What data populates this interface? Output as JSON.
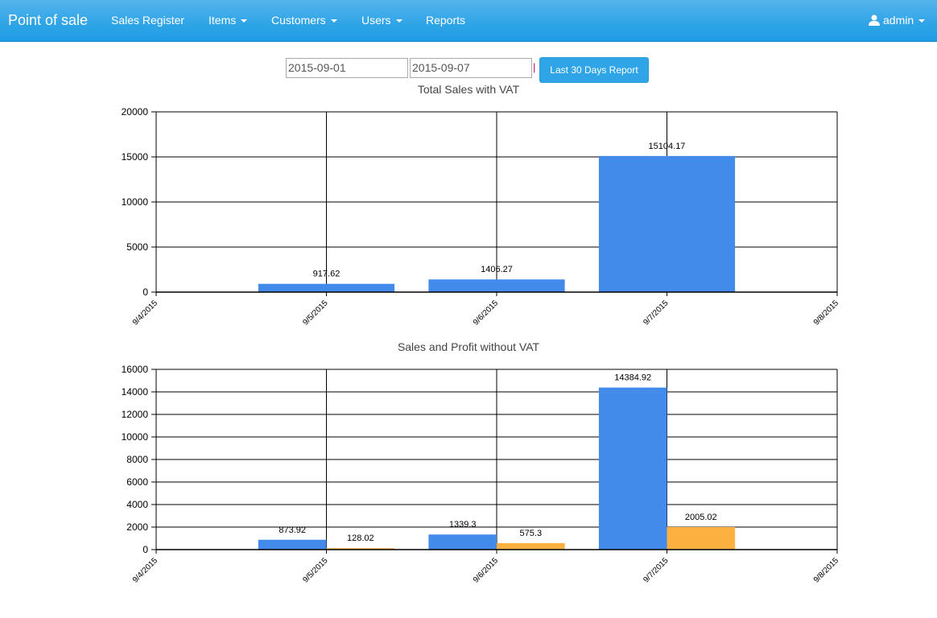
{
  "nav": {
    "brand": "Point of sale",
    "items": [
      {
        "label": "Sales Register"
      },
      {
        "label": "Items"
      },
      {
        "label": "Customers"
      },
      {
        "label": "Users"
      },
      {
        "label": "Reports"
      }
    ],
    "user": "admin"
  },
  "filter": {
    "start": "2015-09-01",
    "end": "2015-09-07",
    "separator": "|",
    "button": "Last 30 Days Report"
  },
  "colors": {
    "sales": "#428bea",
    "profit": "#fbb040"
  },
  "chart_data": [
    {
      "type": "bar",
      "title": "Total Sales with VAT",
      "categories": [
        "9/4/2015",
        "9/5/2015",
        "9/6/2015",
        "9/7/2015",
        "9/8/2015"
      ],
      "series": [
        {
          "name": "Sales",
          "values": [
            null,
            917.62,
            1406.27,
            15104.17,
            null
          ]
        }
      ],
      "labels": [
        [
          "",
          "917.62",
          "1406.27",
          "15104.17",
          ""
        ]
      ],
      "ylim": [
        0,
        20000
      ],
      "yticks": [
        "0",
        "5000",
        "10000",
        "15000",
        "20000"
      ],
      "grid": true
    },
    {
      "type": "bar",
      "title": "Sales and Profit without VAT",
      "categories": [
        "9/4/2015",
        "9/5/2015",
        "9/6/2015",
        "9/7/2015",
        "9/8/2015"
      ],
      "series": [
        {
          "name": "Sales",
          "values": [
            null,
            873.92,
            1339.3,
            14384.92,
            null
          ]
        },
        {
          "name": "Profit",
          "values": [
            null,
            128.02,
            575.3,
            2005.02,
            null
          ]
        }
      ],
      "labels": [
        [
          "",
          "873.92",
          "1339.3",
          "14384.92",
          ""
        ],
        [
          "",
          "128.02",
          "575.3",
          "2005.02",
          ""
        ]
      ],
      "ylim": [
        0,
        16000
      ],
      "yticks": [
        "0",
        "2000",
        "4000",
        "6000",
        "8000",
        "10000",
        "12000",
        "14000",
        "16000"
      ],
      "grid": true
    }
  ]
}
